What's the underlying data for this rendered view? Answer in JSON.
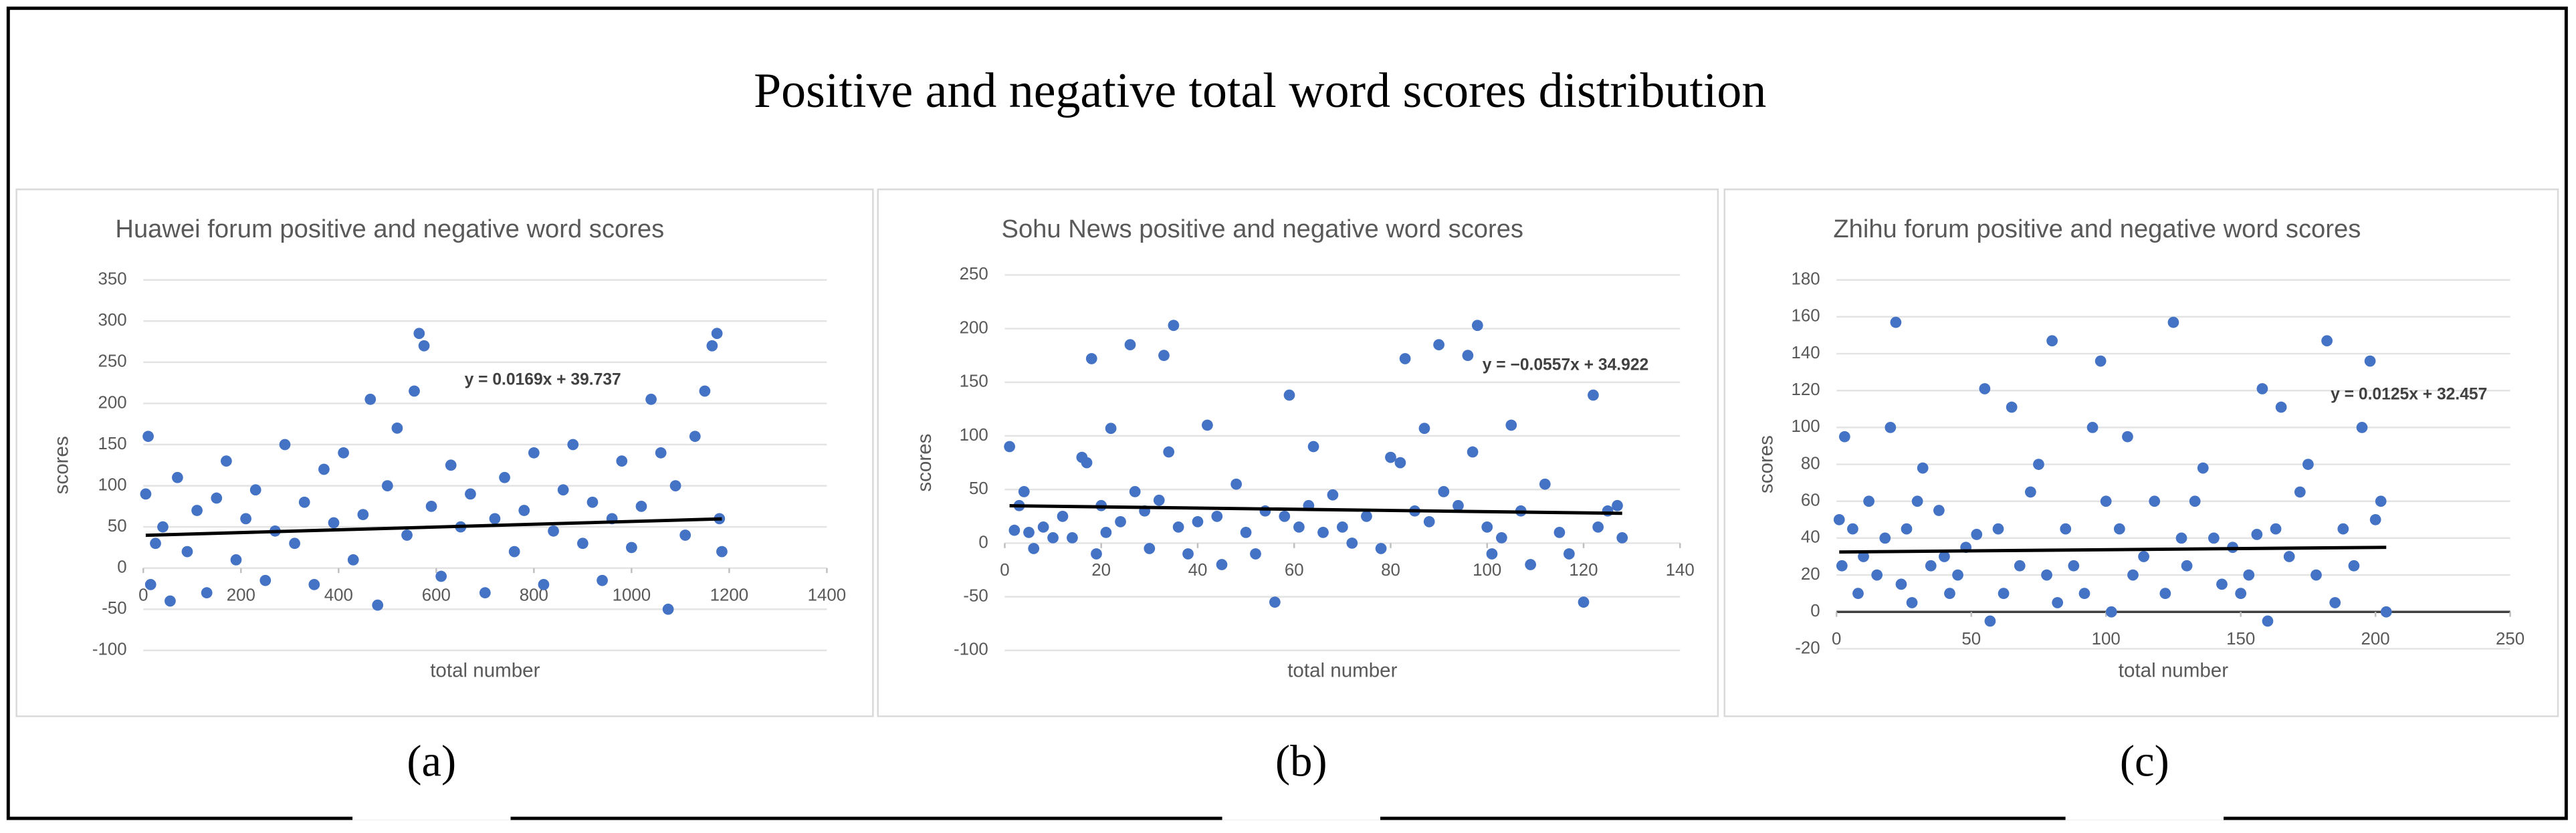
{
  "title": "Positive and negative total word scores distribution",
  "chart_data": [
    {
      "type": "scatter",
      "panel_label": "(a)",
      "title": "Huawei forum positive and negative word scores",
      "xlabel": "total number",
      "ylabel": "scores",
      "color": "#4472c4",
      "grid": true,
      "zero_line": false,
      "xlim": [
        0,
        1400
      ],
      "xticks": [
        0,
        200,
        400,
        600,
        800,
        1000,
        1200,
        1400
      ],
      "ylim": [
        -100,
        350
      ],
      "yticks": [
        -100,
        -50,
        0,
        50,
        100,
        150,
        200,
        250,
        300,
        350
      ],
      "x": [
        5,
        10,
        15,
        25,
        40,
        55,
        70,
        90,
        110,
        130,
        150,
        170,
        190,
        210,
        230,
        250,
        270,
        290,
        310,
        330,
        350,
        370,
        390,
        410,
        430,
        450,
        465,
        480,
        500,
        520,
        540,
        555,
        565,
        575,
        590,
        610,
        630,
        650,
        670,
        700,
        720,
        740,
        760,
        780,
        800,
        820,
        840,
        860,
        880,
        900,
        920,
        940,
        960,
        980,
        1000,
        1020,
        1040,
        1060,
        1075,
        1090,
        1110,
        1130,
        1150,
        1165,
        1175,
        1180,
        1185
      ],
      "values": [
        90,
        160,
        -20,
        30,
        50,
        -40,
        110,
        20,
        70,
        -30,
        85,
        130,
        10,
        60,
        95,
        -15,
        45,
        150,
        30,
        80,
        -20,
        120,
        55,
        140,
        10,
        65,
        205,
        -45,
        100,
        170,
        40,
        215,
        285,
        270,
        75,
        -10,
        125,
        50,
        90,
        -30,
        60,
        110,
        20,
        70,
        140,
        -20,
        45,
        95,
        150,
        30,
        80,
        -15,
        60,
        130,
        25,
        75,
        205,
        140,
        -50,
        100,
        40,
        160,
        215,
        270,
        285,
        60,
        20
      ],
      "trendline": {
        "slope": 0.0169,
        "intercept": 39.737,
        "label": "y = 0.0169x + 39.737"
      }
    },
    {
      "type": "scatter",
      "panel_label": "(b)",
      "title": "Sohu News positive and negative word scores",
      "xlabel": "total number",
      "ylabel": "scores",
      "color": "#4472c4",
      "grid": true,
      "zero_line": false,
      "xlim": [
        0,
        140
      ],
      "xticks": [
        0,
        20,
        40,
        60,
        80,
        100,
        120,
        140
      ],
      "ylim": [
        -100,
        250
      ],
      "yticks": [
        -100,
        -50,
        0,
        50,
        100,
        150,
        200,
        250
      ],
      "x": [
        1,
        2,
        3,
        4,
        5,
        6,
        8,
        10,
        12,
        14,
        16,
        17,
        18,
        19,
        20,
        21,
        22,
        24,
        26,
        27,
        29,
        30,
        32,
        33,
        34,
        35,
        36,
        38,
        40,
        42,
        44,
        45,
        48,
        50,
        52,
        54,
        56,
        58,
        59,
        61,
        63,
        64,
        66,
        68,
        70,
        72,
        75,
        78,
        80,
        82,
        83,
        85,
        87,
        88,
        90,
        91,
        94,
        96,
        97,
        98,
        100,
        101,
        103,
        105,
        107,
        109,
        112,
        115,
        117,
        120,
        122,
        123,
        125,
        127,
        128
      ],
      "values": [
        90,
        12,
        35,
        48,
        10,
        -5,
        15,
        5,
        25,
        5,
        80,
        75,
        172,
        -10,
        35,
        10,
        107,
        20,
        185,
        48,
        30,
        -5,
        40,
        175,
        85,
        203,
        15,
        -10,
        20,
        110,
        25,
        -20,
        55,
        10,
        -10,
        30,
        -55,
        25,
        138,
        15,
        35,
        90,
        10,
        45,
        15,
        0,
        25,
        -5,
        80,
        75,
        172,
        30,
        107,
        20,
        185,
        48,
        35,
        175,
        85,
        203,
        15,
        -10,
        5,
        110,
        30,
        -20,
        55,
        10,
        -10,
        -55,
        138,
        15,
        30,
        35,
        5
      ],
      "trendline": {
        "slope": -0.0557,
        "intercept": 34.922,
        "label": "y = −0.0557x + 34.922"
      }
    },
    {
      "type": "scatter",
      "panel_label": "(c)",
      "title": "Zhihu forum positive and negative word scores",
      "xlabel": "total number",
      "ylabel": "scores",
      "color": "#4472c4",
      "grid": true,
      "zero_line": true,
      "xlim": [
        0,
        250
      ],
      "xticks": [
        0,
        50,
        100,
        150,
        200,
        250
      ],
      "ylim": [
        -20,
        180
      ],
      "yticks": [
        -20,
        0,
        20,
        40,
        60,
        80,
        100,
        120,
        140,
        160,
        180
      ],
      "x": [
        1,
        2,
        3,
        6,
        8,
        10,
        12,
        15,
        18,
        20,
        22,
        24,
        26,
        28,
        30,
        32,
        35,
        38,
        40,
        42,
        45,
        48,
        52,
        55,
        57,
        60,
        62,
        65,
        68,
        72,
        75,
        78,
        80,
        82,
        85,
        88,
        92,
        95,
        98,
        100,
        102,
        105,
        108,
        110,
        114,
        118,
        122,
        125,
        128,
        130,
        133,
        136,
        140,
        143,
        147,
        150,
        153,
        156,
        158,
        160,
        163,
        165,
        168,
        172,
        175,
        178,
        182,
        185,
        188,
        192,
        195,
        198,
        200,
        202,
        204
      ],
      "values": [
        50,
        25,
        95,
        45,
        10,
        30,
        60,
        20,
        40,
        100,
        157,
        15,
        45,
        5,
        60,
        78,
        25,
        55,
        30,
        10,
        20,
        35,
        42,
        121,
        -5,
        45,
        10,
        111,
        25,
        65,
        80,
        20,
        147,
        5,
        45,
        25,
        10,
        100,
        136,
        60,
        0,
        45,
        95,
        20,
        30,
        60,
        10,
        157,
        40,
        25,
        60,
        78,
        40,
        15,
        35,
        10,
        20,
        42,
        121,
        -5,
        45,
        111,
        30,
        65,
        80,
        20,
        147,
        5,
        45,
        25,
        100,
        136,
        50,
        60,
        0
      ],
      "trendline": {
        "slope": 0.0125,
        "intercept": 32.457,
        "label": "y = 0.0125x + 32.457"
      }
    }
  ]
}
